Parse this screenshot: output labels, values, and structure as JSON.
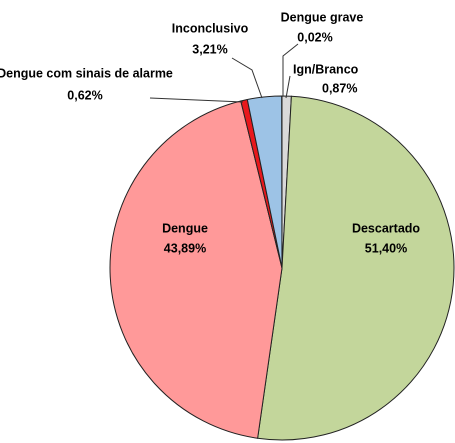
{
  "chart_data": {
    "type": "pie",
    "categories": [
      "Ign/Branco",
      "Descartado",
      "Dengue",
      "Dengue com sinais de alarme",
      "Inconclusivo",
      "Dengue grave"
    ],
    "values": [
      0.87,
      51.4,
      43.89,
      0.62,
      3.21,
      0.02
    ],
    "value_labels": [
      "0,87%",
      "51,40%",
      "43,89%",
      "0,62%",
      "3,21%",
      "0,02%"
    ],
    "colors": [
      "#d9d9d9",
      "#c3d69b",
      "#ff9999",
      "#e8181c",
      "#9dc3e6",
      "#7f7f7f"
    ]
  }
}
